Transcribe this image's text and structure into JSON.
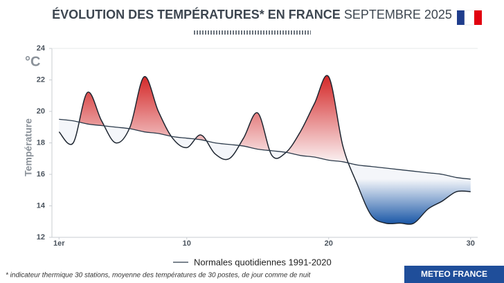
{
  "chart_data": {
    "type": "line",
    "title": "ÉVOLUTION DES TEMPÉRATURES* EN FRANCE",
    "title_suffix": "SEPTEMBRE 2025",
    "unit": "°C",
    "ylabel": "Température",
    "x": [
      1,
      2,
      3,
      4,
      5,
      6,
      7,
      8,
      9,
      10,
      11,
      12,
      13,
      14,
      15,
      16,
      17,
      18,
      19,
      20,
      21,
      22,
      23,
      24,
      25,
      26,
      27,
      28,
      29,
      30
    ],
    "series": [
      {
        "color": "#1d2530",
        "values": [
          18.7,
          18.0,
          21.2,
          19.4,
          18.0,
          19.0,
          22.2,
          20.0,
          18.3,
          17.7,
          18.5,
          17.3,
          17.0,
          18.3,
          19.9,
          17.2,
          17.4,
          18.7,
          20.5,
          22.2,
          17.8,
          15.4,
          13.4,
          12.9,
          12.9,
          12.9,
          13.8,
          14.3,
          14.9,
          14.9
        ]
      },
      {
        "name": "Normales quotidiennes 1991-2020",
        "color": "#2b3a4a",
        "values": [
          19.5,
          19.4,
          19.2,
          19.1,
          19.0,
          18.9,
          18.7,
          18.6,
          18.4,
          18.3,
          18.2,
          18.0,
          17.9,
          17.8,
          17.6,
          17.5,
          17.4,
          17.2,
          17.1,
          16.9,
          16.8,
          16.6,
          16.5,
          16.4,
          16.3,
          16.2,
          16.1,
          16.0,
          15.8,
          15.7
        ]
      }
    ],
    "xlim": [
      0.5,
      30.5
    ],
    "xticks": [
      {
        "value": 1,
        "label": "1er"
      },
      10,
      20,
      30
    ],
    "ylim": [
      12,
      24
    ],
    "yticks": [
      12,
      14,
      16,
      18,
      20,
      22,
      24
    ],
    "above_color": "#d42a2a",
    "below_color": "#1e5aa8",
    "footnote": "* indicateur thermique 30 stations, moyenne des températures de 30 postes, de jour comme de nuit"
  },
  "brand": "METEO FRANCE"
}
